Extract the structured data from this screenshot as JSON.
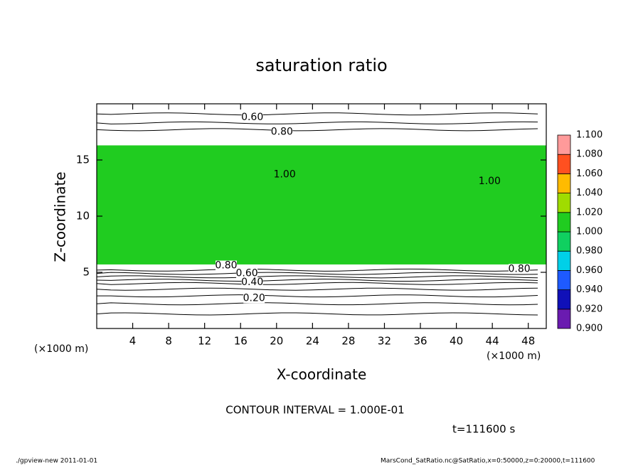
{
  "chart_data": {
    "type": "contour",
    "title": "saturation ratio",
    "x_label": "X-coordinate",
    "y_label": "Z-coordinate",
    "x_unit": "(×1000 m)",
    "y_unit": "(×1000 m)",
    "xlim": [
      0,
      50
    ],
    "xticks": [
      4,
      8,
      12,
      16,
      20,
      24,
      28,
      32,
      36,
      40,
      44,
      48
    ],
    "ylim": [
      0,
      20
    ],
    "yticks": [
      5,
      10,
      15
    ],
    "field": {
      "level": 1.0,
      "zlim": [
        5.7,
        16.3
      ]
    },
    "contour_lines": [
      1.3,
      2.2,
      2.9,
      3.5,
      4.0,
      4.3,
      4.6,
      4.9,
      5.2,
      17.7,
      18.3,
      19.1
    ],
    "annotations": [
      {
        "text": "0.60",
        "x": 17.3,
        "y": 18.8
      },
      {
        "text": "0.80",
        "x": 20.6,
        "y": 17.5
      },
      {
        "text": "1.00",
        "x": 20.9,
        "y": 13.7
      },
      {
        "text": "1.00",
        "x": 43.7,
        "y": 13.1
      },
      {
        "text": "0.80",
        "x": 14.4,
        "y": 5.6
      },
      {
        "text": "0.60",
        "x": 16.7,
        "y": 4.9
      },
      {
        "text": "0.40",
        "x": 17.3,
        "y": 4.1
      },
      {
        "text": "0.20",
        "x": 17.5,
        "y": 2.7
      },
      {
        "text": "0.80",
        "x": 47.0,
        "y": 5.3
      }
    ],
    "colorbar": {
      "ticks": [
        {
          "value": 0.9,
          "label": "0.900"
        },
        {
          "value": 0.92,
          "label": "0.920"
        },
        {
          "value": 0.94,
          "label": "0.940"
        },
        {
          "value": 0.96,
          "label": "0.960"
        },
        {
          "value": 0.98,
          "label": "0.980"
        },
        {
          "value": 1.0,
          "label": "1.000"
        },
        {
          "value": 1.02,
          "label": "1.020"
        },
        {
          "value": 1.04,
          "label": "1.040"
        },
        {
          "value": 1.06,
          "label": "1.060"
        },
        {
          "value": 1.08,
          "label": "1.080"
        },
        {
          "value": 1.1,
          "label": "1.100"
        }
      ],
      "colors": [
        "#6a1bb0",
        "#1010b8",
        "#1e5aff",
        "#00d0e8",
        "#10d060",
        "#20cc20",
        "#a0dc00",
        "#ffbb00",
        "#ff5020",
        "#ff9a9a"
      ]
    },
    "contour_interval": "CONTOUR INTERVAL = 1.000E-01",
    "time_label": "t=111600 s",
    "footer_left": "./gpview-new   2011-01-01",
    "footer_right": "MarsCond_SatRatio.nc@SatRatio,x=0:50000,z=0:20000,t=111600"
  }
}
